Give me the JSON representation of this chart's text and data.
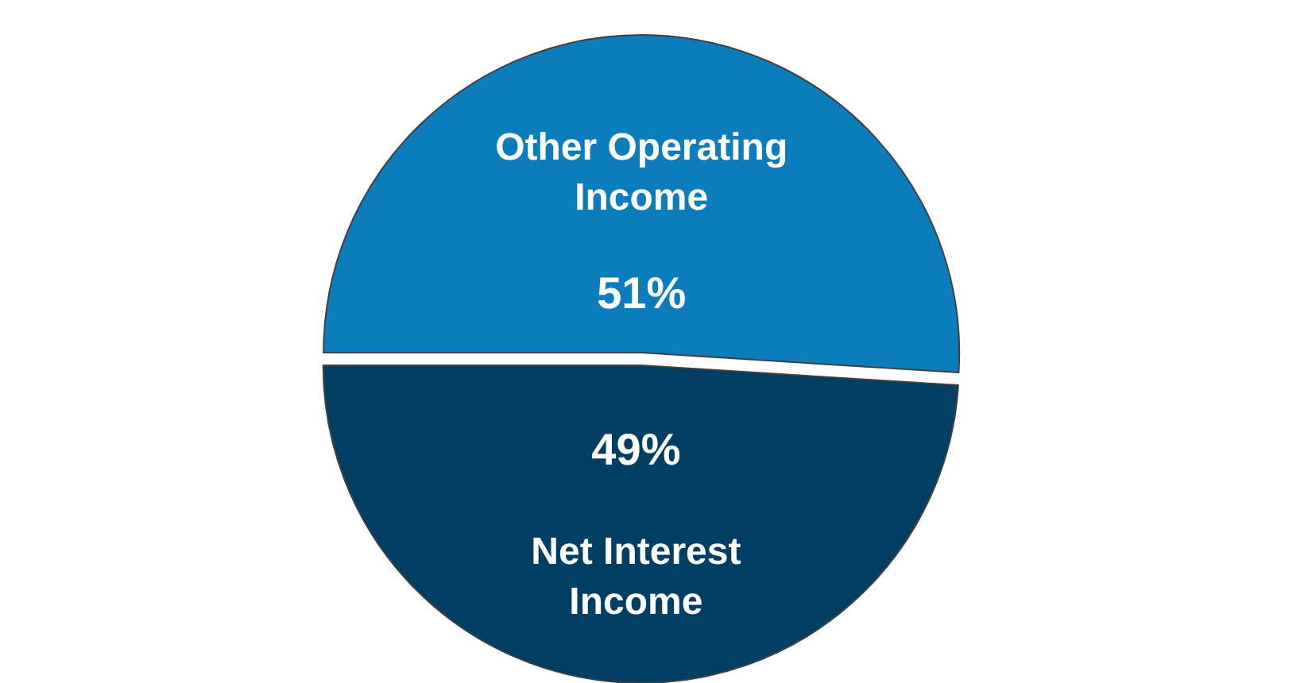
{
  "chart_data": {
    "type": "pie",
    "categories": [
      "Other Operating Income",
      "Net Interest Income"
    ],
    "values": [
      51,
      49
    ],
    "colors": [
      "#0b7dbd",
      "#003f63"
    ],
    "value_labels": [
      "51%",
      "49%"
    ],
    "legend": false
  }
}
